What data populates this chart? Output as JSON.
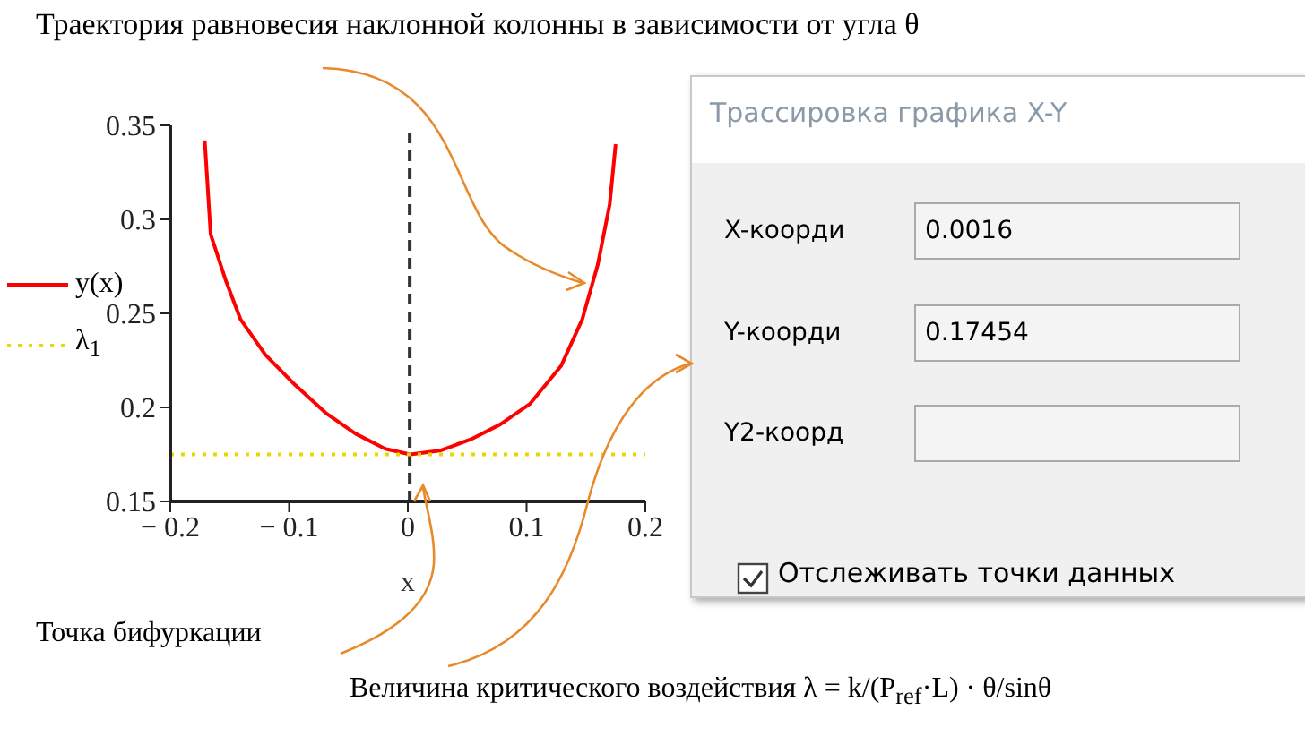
{
  "chart_data": {
    "type": "line",
    "title": "Траектория равновесия наклонной колонны в зависимости от угла θ",
    "xlabel": "x",
    "series": [
      {
        "name": "y(x)",
        "color": "#ff0000",
        "line_style": "solid",
        "x": [
          -0.171,
          -0.166,
          -0.153,
          -0.141,
          -0.12,
          -0.095,
          -0.069,
          -0.044,
          -0.019,
          0.002,
          0.027,
          0.053,
          0.078,
          0.103,
          0.129,
          0.147,
          0.16,
          0.17,
          0.175
        ],
        "values": [
          0.342,
          0.292,
          0.267,
          0.247,
          0.228,
          0.212,
          0.197,
          0.186,
          0.178,
          0.175,
          0.177,
          0.183,
          0.191,
          0.202,
          0.222,
          0.247,
          0.276,
          0.308,
          0.34
        ]
      },
      {
        "name": "λ$_{1}$",
        "color": "#e6d800",
        "line_style": "dotted",
        "x": [
          -0.2,
          0.2
        ],
        "values": [
          0.175,
          0.175
        ]
      }
    ],
    "xlim": [
      -0.2,
      0.2
    ],
    "xticks": [
      {
        "value": -0.2,
        "label": "− 0.2"
      },
      {
        "value": -0.1,
        "label": "− 0.1"
      },
      0,
      0.1,
      0.2
    ],
    "ylim": [
      0.15,
      0.35
    ],
    "yticks": [
      0.15,
      0.2,
      0.25,
      0.3,
      0.35
    ],
    "ref_lines": [
      {
        "axis": "x",
        "value": 0.0016,
        "color": "#333333",
        "line_style": "dashed"
      }
    ],
    "grid": false,
    "legend": "left",
    "marker": "none",
    "annotations": [
      "Точка бифуркации",
      "Величина критического воздействия λ = k/(P$_{ref}$·L) · θ/sinθ",
      "Трассировка графика X-Y",
      "X-коорди",
      "0.0016",
      "Y-коорди",
      "0.17454",
      "Y2-коорд",
      "Отслеживать точки данных"
    ]
  }
}
